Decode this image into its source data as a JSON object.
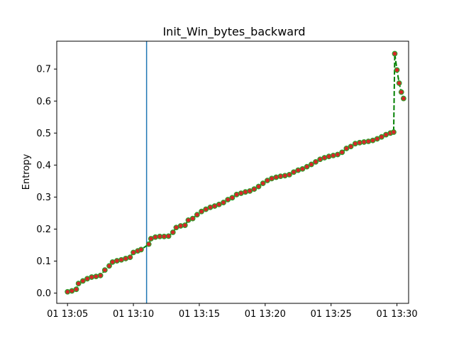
{
  "chart_data": {
    "type": "line",
    "title": "Init_Win_bytes_backward",
    "xlabel": "",
    "ylabel": "Entropy",
    "x_axis_type": "time",
    "xlim": [
      "13:04:11",
      "13:30:53"
    ],
    "ylim": [
      -0.032,
      0.787
    ],
    "grid": false,
    "x_ticks": [
      {
        "t": "13:05:00",
        "label": "01 13:05"
      },
      {
        "t": "13:10:00",
        "label": "01 13:10"
      },
      {
        "t": "13:15:00",
        "label": "01 13:15"
      },
      {
        "t": "13:20:00",
        "label": "01 13:20"
      },
      {
        "t": "13:25:00",
        "label": "01 13:25"
      },
      {
        "t": "13:30:00",
        "label": "01 13:30"
      }
    ],
    "y_ticks": [
      "0.0",
      "0.1",
      "0.2",
      "0.3",
      "0.4",
      "0.5",
      "0.6",
      "0.7"
    ],
    "vertical_line": {
      "t": "13:11:00",
      "color": "#1f77b4"
    },
    "series": [
      {
        "line_color": "#008000",
        "line_style": "dashed",
        "marker_face": "#d62728",
        "marker_edge": "#2ca02c",
        "points": [
          [
            "13:05:00",
            0.004
          ],
          [
            "13:05:20",
            0.007
          ],
          [
            "13:05:40",
            0.012
          ],
          [
            "13:05:50",
            0.03
          ],
          [
            "13:06:10",
            0.038
          ],
          [
            "13:06:30",
            0.045
          ],
          [
            "13:06:50",
            0.05
          ],
          [
            "13:07:10",
            0.052
          ],
          [
            "13:07:30",
            0.055
          ],
          [
            "13:07:50",
            0.072
          ],
          [
            "13:08:10",
            0.085
          ],
          [
            "13:08:25",
            0.097
          ],
          [
            "13:08:45",
            0.101
          ],
          [
            "13:09:05",
            0.104
          ],
          [
            "13:09:25",
            0.108
          ],
          [
            "13:09:45",
            0.112
          ],
          [
            "13:10:00",
            0.127
          ],
          [
            "13:10:20",
            0.132
          ],
          [
            "13:10:35",
            0.136
          ],
          [
            "13:11:10",
            0.153
          ],
          [
            "13:11:20",
            0.17
          ],
          [
            "13:11:40",
            0.175
          ],
          [
            "13:12:00",
            0.177
          ],
          [
            "13:12:20",
            0.177
          ],
          [
            "13:12:40",
            0.178
          ],
          [
            "13:13:00",
            0.19
          ],
          [
            "13:13:15",
            0.205
          ],
          [
            "13:13:35",
            0.21
          ],
          [
            "13:13:55",
            0.212
          ],
          [
            "13:14:10",
            0.228
          ],
          [
            "13:14:30",
            0.233
          ],
          [
            "13:14:50",
            0.245
          ],
          [
            "13:15:10",
            0.255
          ],
          [
            "13:15:30",
            0.262
          ],
          [
            "13:15:50",
            0.268
          ],
          [
            "13:16:10",
            0.272
          ],
          [
            "13:16:30",
            0.277
          ],
          [
            "13:16:50",
            0.283
          ],
          [
            "13:17:10",
            0.292
          ],
          [
            "13:17:30",
            0.298
          ],
          [
            "13:17:50",
            0.308
          ],
          [
            "13:18:10",
            0.312
          ],
          [
            "13:18:30",
            0.316
          ],
          [
            "13:18:50",
            0.319
          ],
          [
            "13:19:10",
            0.325
          ],
          [
            "13:19:30",
            0.333
          ],
          [
            "13:19:50",
            0.343
          ],
          [
            "13:20:10",
            0.352
          ],
          [
            "13:20:30",
            0.358
          ],
          [
            "13:20:50",
            0.362
          ],
          [
            "13:21:10",
            0.365
          ],
          [
            "13:21:30",
            0.367
          ],
          [
            "13:21:50",
            0.37
          ],
          [
            "13:22:10",
            0.378
          ],
          [
            "13:22:30",
            0.384
          ],
          [
            "13:22:50",
            0.388
          ],
          [
            "13:23:10",
            0.395
          ],
          [
            "13:23:30",
            0.402
          ],
          [
            "13:23:50",
            0.41
          ],
          [
            "13:24:10",
            0.418
          ],
          [
            "13:24:30",
            0.423
          ],
          [
            "13:24:50",
            0.427
          ],
          [
            "13:25:10",
            0.43
          ],
          [
            "13:25:30",
            0.433
          ],
          [
            "13:25:50",
            0.44
          ],
          [
            "13:26:10",
            0.452
          ],
          [
            "13:26:30",
            0.458
          ],
          [
            "13:26:50",
            0.467
          ],
          [
            "13:27:10",
            0.47
          ],
          [
            "13:27:30",
            0.472
          ],
          [
            "13:27:50",
            0.474
          ],
          [
            "13:28:10",
            0.477
          ],
          [
            "13:28:30",
            0.482
          ],
          [
            "13:28:50",
            0.488
          ],
          [
            "13:29:10",
            0.495
          ],
          [
            "13:29:30",
            0.5
          ],
          [
            "13:29:45",
            0.503
          ],
          [
            "13:29:50",
            0.748
          ],
          [
            "13:30:00",
            0.697
          ],
          [
            "13:30:10",
            0.656
          ],
          [
            "13:30:20",
            0.628
          ],
          [
            "13:30:30",
            0.608
          ]
        ]
      }
    ]
  }
}
